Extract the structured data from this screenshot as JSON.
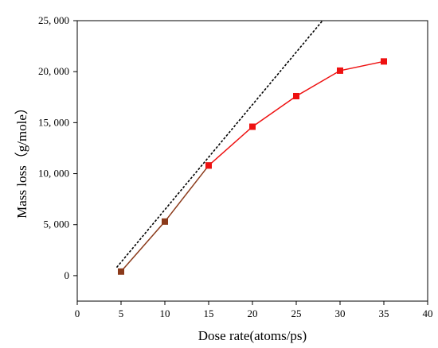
{
  "chart_data": {
    "type": "line",
    "title": "",
    "xlabel": "Dose rate(atoms/ps)",
    "ylabel": "Mass loss（g/mole）",
    "xlim": [
      0,
      40
    ],
    "ylim": [
      -2500,
      25000
    ],
    "x_ticks": [
      {
        "value": 0,
        "label": "0"
      },
      {
        "value": 5,
        "label": "5"
      },
      {
        "value": 10,
        "label": "10"
      },
      {
        "value": 15,
        "label": "15"
      },
      {
        "value": 20,
        "label": "20"
      },
      {
        "value": 25,
        "label": "25"
      },
      {
        "value": 30,
        "label": "30"
      },
      {
        "value": 35,
        "label": "35"
      },
      {
        "value": 40,
        "label": "40"
      }
    ],
    "y_ticks": [
      {
        "value": 0,
        "label": "0"
      },
      {
        "value": 5000,
        "label": "5, 000"
      },
      {
        "value": 10000,
        "label": "10, 000"
      },
      {
        "value": 15000,
        "label": "15, 000"
      },
      {
        "value": 20000,
        "label": "20, 000"
      },
      {
        "value": 25000,
        "label": "25, 000"
      }
    ],
    "grid": false,
    "legend": "none",
    "series": [
      {
        "x": [
          5,
          10,
          15
        ],
        "y": [
          400,
          5300,
          10800
        ],
        "color": "#8B3A1A",
        "marker": "square",
        "line_style": "solid"
      },
      {
        "x": [
          15,
          20,
          25,
          30,
          35
        ],
        "y": [
          10800,
          14600,
          17600,
          20100,
          21000
        ],
        "color": "#ee1111",
        "marker": "square",
        "line_style": "solid"
      },
      {
        "x": [
          4.5,
          28
        ],
        "y": [
          800,
          25000
        ],
        "color": "#000000",
        "marker": "none",
        "line_style": "dotted"
      }
    ]
  }
}
